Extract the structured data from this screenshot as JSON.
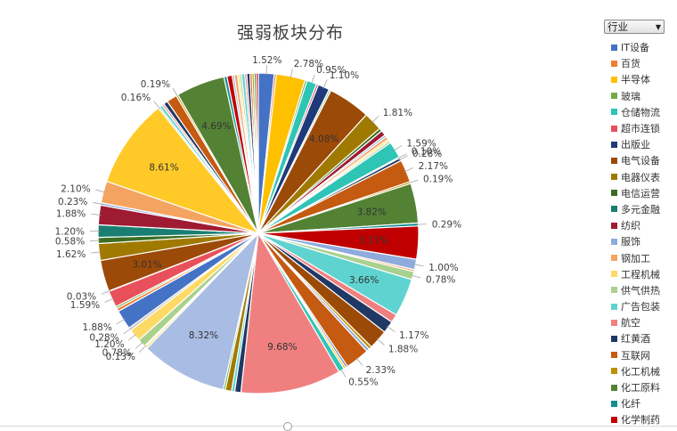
{
  "chart_data": {
    "type": "pie",
    "title": "强弱板块分布",
    "legend_title": "行业",
    "legend_position": "right",
    "legend": [
      {
        "label": "IT设备",
        "color": "#4472C4"
      },
      {
        "label": "百货",
        "color": "#ED7D31"
      },
      {
        "label": "半导体",
        "color": "#FFC000"
      },
      {
        "label": "玻璃",
        "color": "#70AD47"
      },
      {
        "label": "仓储物流",
        "color": "#2EC4B6"
      },
      {
        "label": "超市连锁",
        "color": "#E8505B"
      },
      {
        "label": "出版业",
        "color": "#1F3A7A"
      },
      {
        "label": "电气设备",
        "color": "#9C4A08"
      },
      {
        "label": "电器仪表",
        "color": "#A07A00"
      },
      {
        "label": "电信运营",
        "color": "#3B6E22"
      },
      {
        "label": "多元金融",
        "color": "#1A7F72"
      },
      {
        "label": "纺织",
        "color": "#9E1B32"
      },
      {
        "label": "服饰",
        "color": "#8FAADC"
      },
      {
        "label": "钢加工",
        "color": "#F4A460"
      },
      {
        "label": "工程机械",
        "color": "#FFD966"
      },
      {
        "label": "供气供热",
        "color": "#A9D18E"
      },
      {
        "label": "广告包装",
        "color": "#5FD3CF"
      },
      {
        "label": "航空",
        "color": "#F08080"
      },
      {
        "label": "红黄酒",
        "color": "#203864"
      },
      {
        "label": "互联网",
        "color": "#C55A11"
      },
      {
        "label": "化工机械",
        "color": "#BF9000"
      },
      {
        "label": "化工原料",
        "color": "#548235"
      },
      {
        "label": "化纤",
        "color": "#138D90"
      },
      {
        "label": "化学制药",
        "color": "#C00000"
      }
    ],
    "slices": [
      {
        "value": 1.52,
        "label": "1.52%",
        "color": "#4472C4"
      },
      {
        "value": 0.2,
        "label": "",
        "color": "#ED7D31"
      },
      {
        "value": 2.78,
        "label": "2.78%",
        "color": "#FFC000"
      },
      {
        "value": 0.2,
        "label": "",
        "color": "#70AD47"
      },
      {
        "value": 0.95,
        "label": "0.95%",
        "color": "#2EC4B6"
      },
      {
        "value": 0.2,
        "label": "",
        "color": "#E8505B"
      },
      {
        "value": 1.1,
        "label": "1.10%",
        "color": "#1F3A7A"
      },
      {
        "value": 0.2,
        "label": "",
        "color": "#A9D18E"
      },
      {
        "value": 4.08,
        "label": "4.08%",
        "color": "#9C4A08"
      },
      {
        "value": 1.81,
        "label": "1.81%",
        "color": "#A07A00"
      },
      {
        "value": 0.3,
        "label": "",
        "color": "#3B6E22"
      },
      {
        "value": 0.5,
        "label": "",
        "color": "#9E1B32"
      },
      {
        "value": 0.2,
        "label": "",
        "color": "#8FAADC"
      },
      {
        "value": 0.3,
        "label": "",
        "color": "#F4A460"
      },
      {
        "value": 0.2,
        "label": "",
        "color": "#FFD966"
      },
      {
        "value": 0.2,
        "label": "",
        "color": "#A9D18E"
      },
      {
        "value": 1.59,
        "label": "1.59%",
        "color": "#2EC4B6"
      },
      {
        "value": 0.1,
        "label": "0.10%",
        "color": "#F08080"
      },
      {
        "value": 0.28,
        "label": "0.28%",
        "color": "#203864"
      },
      {
        "value": 2.17,
        "label": "2.17%",
        "color": "#C55A11"
      },
      {
        "value": 0.19,
        "label": "0.19%",
        "color": "#BF9000"
      },
      {
        "value": 3.82,
        "label": "3.82%",
        "color": "#548235"
      },
      {
        "value": 0.29,
        "label": "0.29%",
        "color": "#138D90"
      },
      {
        "value": 3.17,
        "label": "3.17%",
        "color": "#C00000"
      },
      {
        "value": 1.0,
        "label": "1.00%",
        "color": "#8FAADC"
      },
      {
        "value": 0.2,
        "label": "",
        "color": "#F4A460"
      },
      {
        "value": 0.78,
        "label": "0.78%",
        "color": "#A9D18E"
      },
      {
        "value": 3.66,
        "label": "3.66%",
        "color": "#5FD3CF"
      },
      {
        "value": 0.8,
        "label": "",
        "color": "#F08080"
      },
      {
        "value": 1.17,
        "label": "1.17%",
        "color": "#203864"
      },
      {
        "value": 1.88,
        "label": "1.88%",
        "color": "#9C4A08"
      },
      {
        "value": 0.3,
        "label": "",
        "color": "#BF9000"
      },
      {
        "value": 0.3,
        "label": "",
        "color": "#8FAADC"
      },
      {
        "value": 2.33,
        "label": "2.33%",
        "color": "#C55A11"
      },
      {
        "value": 0.2,
        "label": "",
        "color": "#4472C4"
      },
      {
        "value": 0.2,
        "label": "",
        "color": "#FFC000"
      },
      {
        "value": 0.55,
        "label": "0.55%",
        "color": "#2EC4B6"
      },
      {
        "value": 9.68,
        "label": "9.68%",
        "color": "#F08080"
      },
      {
        "value": 0.6,
        "label": "",
        "color": "#203864"
      },
      {
        "value": 0.3,
        "label": "",
        "color": "#5FD3CF"
      },
      {
        "value": 0.6,
        "label": "",
        "color": "#A07A00"
      },
      {
        "value": 0.2,
        "label": "",
        "color": "#70AD47"
      },
      {
        "value": 8.32,
        "label": "8.32%",
        "color": "#A9BCE3"
      },
      {
        "value": 0.2,
        "label": "",
        "color": "#FFD966"
      },
      {
        "value": 0.13,
        "label": "0.13%",
        "color": "#FFD966"
      },
      {
        "value": 0.78,
        "label": "0.78%",
        "color": "#A9D18E"
      },
      {
        "value": 1.2,
        "label": "1.20%",
        "color": "#FFD966"
      },
      {
        "value": 0.28,
        "label": "0.28%",
        "color": "#C9C9C9"
      },
      {
        "value": 1.88,
        "label": "1.88%",
        "color": "#4472C4"
      },
      {
        "value": 0.3,
        "label": "",
        "color": "#ED7D31"
      },
      {
        "value": 0.2,
        "label": "",
        "color": "#70AD47"
      },
      {
        "value": 1.59,
        "label": "1.59%",
        "color": "#E8505B"
      },
      {
        "value": 0.03,
        "label": "0.03%",
        "color": "#1F3A7A"
      },
      {
        "value": 3.01,
        "label": "3.01%",
        "color": "#9C4A08"
      },
      {
        "value": 1.62,
        "label": "1.62%",
        "color": "#A07A00"
      },
      {
        "value": 0.58,
        "label": "0.58%",
        "color": "#3B6E22"
      },
      {
        "value": 1.2,
        "label": "1.20%",
        "color": "#1A7F72"
      },
      {
        "value": 1.88,
        "label": "1.88%",
        "color": "#9E1B32"
      },
      {
        "value": 0.23,
        "label": "0.23%",
        "color": "#8FAADC"
      },
      {
        "value": 2.1,
        "label": "2.10%",
        "color": "#F4A460"
      },
      {
        "value": 8.61,
        "label": "8.61%",
        "color": "#FFCA28"
      },
      {
        "value": 0.16,
        "label": "0.16%",
        "color": "#A9D18E"
      },
      {
        "value": 0.3,
        "label": "",
        "color": "#5FD3CF"
      },
      {
        "value": 0.2,
        "label": "",
        "color": "#F08080"
      },
      {
        "value": 0.4,
        "label": "",
        "color": "#203864"
      },
      {
        "value": 1.0,
        "label": "",
        "color": "#C55A11"
      },
      {
        "value": 0.19,
        "label": "0.19%",
        "color": "#BF9000"
      },
      {
        "value": 4.69,
        "label": "4.69%",
        "color": "#548235"
      },
      {
        "value": 0.3,
        "label": "",
        "color": "#138D90"
      },
      {
        "value": 0.5,
        "label": "",
        "color": "#C00000"
      },
      {
        "value": 0.2,
        "label": "",
        "color": "#8FAADC"
      },
      {
        "value": 0.3,
        "label": "",
        "color": "#F4A460"
      },
      {
        "value": 0.2,
        "label": "",
        "color": "#FFD966"
      },
      {
        "value": 0.2,
        "label": "",
        "color": "#A9D18E"
      },
      {
        "value": 0.3,
        "label": "",
        "color": "#5FD3CF"
      },
      {
        "value": 0.2,
        "label": "",
        "color": "#F08080"
      },
      {
        "value": 0.3,
        "label": "",
        "color": "#203864"
      },
      {
        "value": 0.2,
        "label": "",
        "color": "#C55A11"
      },
      {
        "value": 0.2,
        "label": "",
        "color": "#BF9000"
      },
      {
        "value": 0.2,
        "label": "",
        "color": "#548235"
      },
      {
        "value": 0.2,
        "label": "",
        "color": "#C00000"
      }
    ]
  }
}
